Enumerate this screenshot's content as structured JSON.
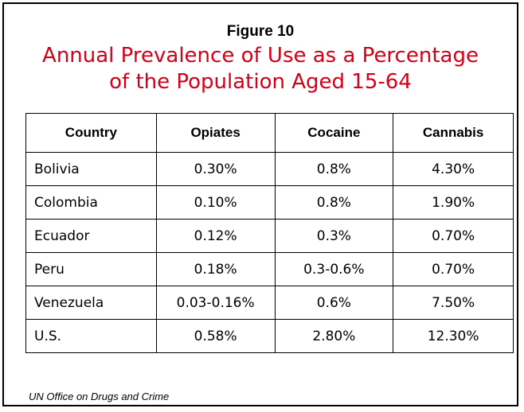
{
  "figure": {
    "label": "Figure 10",
    "title_line1": "Annual Prevalence of Use as a Percentage",
    "title_line2": "of the Population Aged 15-64"
  },
  "table": {
    "headers": [
      "Country",
      "Opiates",
      "Cocaine",
      "Cannabis"
    ],
    "rows": [
      [
        "Bolivia",
        "0.30%",
        "0.8%",
        "4.30%"
      ],
      [
        "Colombia",
        "0.10%",
        "0.8%",
        "1.90%"
      ],
      [
        "Ecuador",
        "0.12%",
        "0.3%",
        "0.70%"
      ],
      [
        "Peru",
        "0.18%",
        "0.3-0.6%",
        "0.70%"
      ],
      [
        "Venezuela",
        "0.03-0.16%",
        "0.6%",
        "7.50%"
      ],
      [
        "U.S.",
        "0.58%",
        "2.80%",
        "12.30%"
      ]
    ]
  },
  "source": "UN Office on Drugs and Crime",
  "colors": {
    "title": "#d4001a",
    "border": "#000000"
  }
}
